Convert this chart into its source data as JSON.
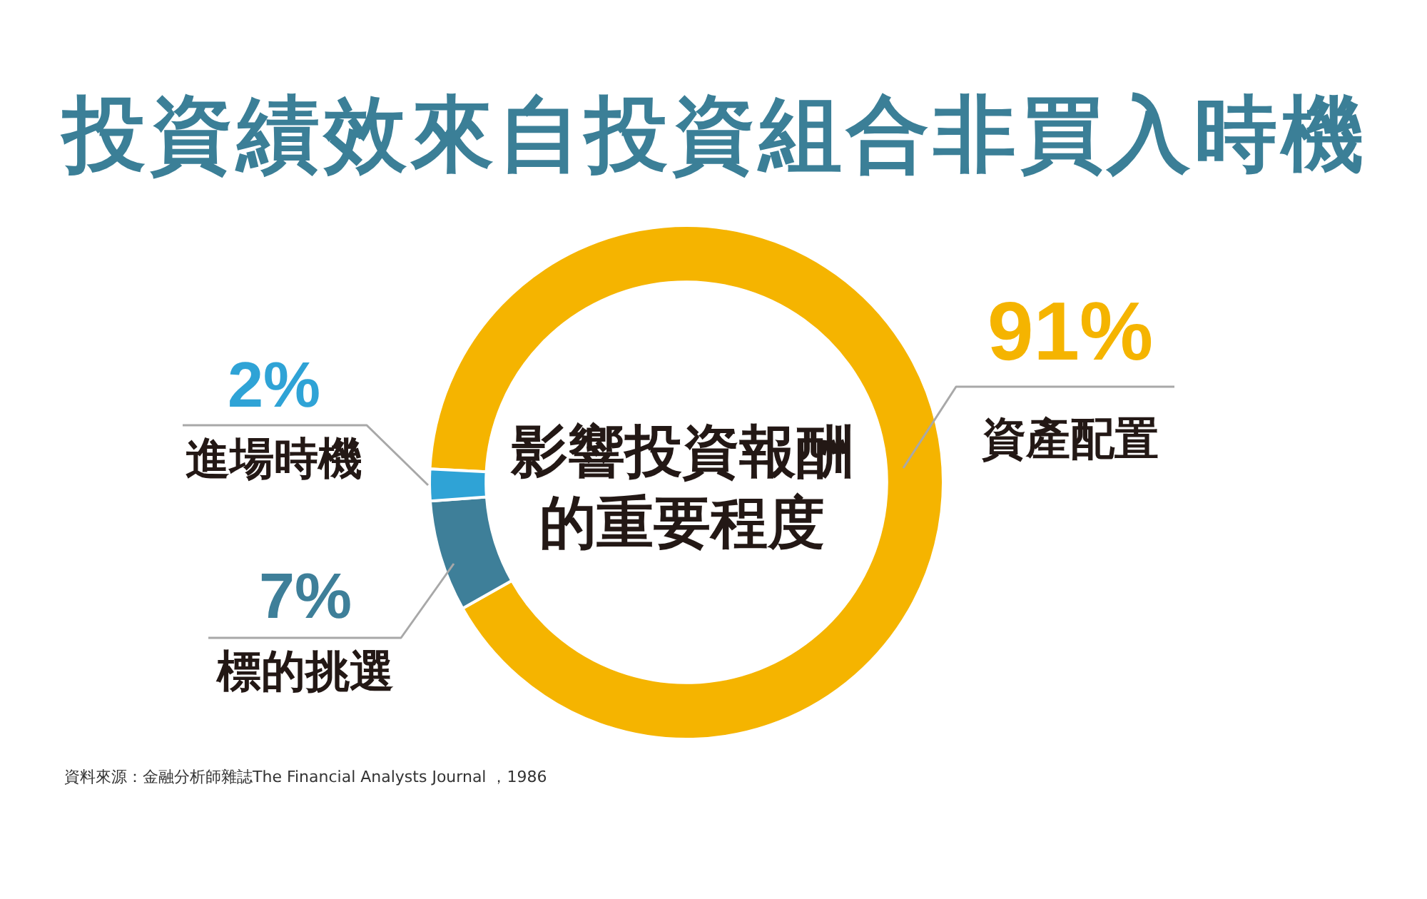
{
  "chart_data": {
    "type": "donut",
    "title": "投資績效來自投資組合非買入時機",
    "subtitle": "影響投資報酬的重要程度",
    "categories": [
      "資產配置",
      "標的挑選",
      "進場時機"
    ],
    "values": [
      91,
      7,
      2
    ],
    "colors": [
      "#f5b400",
      "#3e7f99",
      "#2fa3d6"
    ],
    "value_labels": [
      "91%",
      "7%",
      "2%"
    ],
    "annotations": [
      "資料來源：金融分析師雜誌The Financial Analysts Journal ，1986"
    ]
  }
}
